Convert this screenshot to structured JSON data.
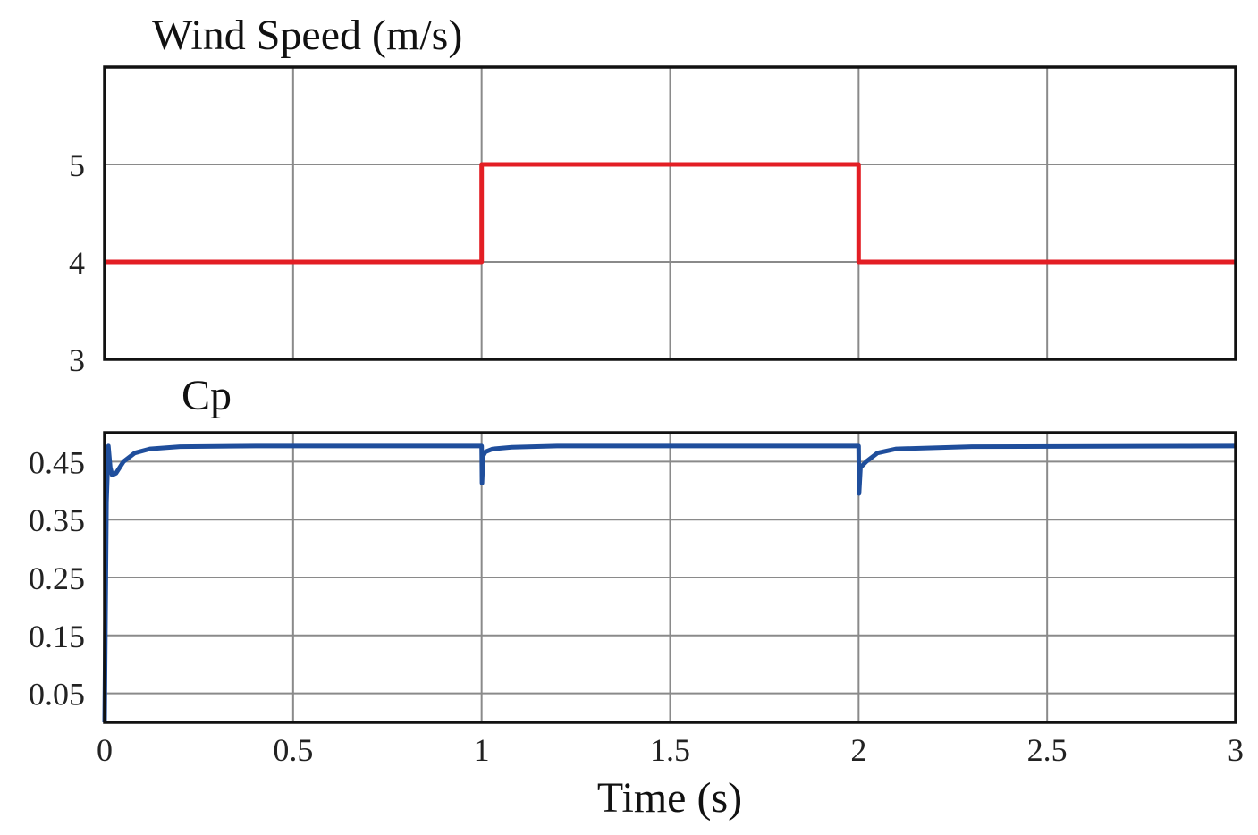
{
  "chart_data": [
    {
      "type": "line",
      "title": "Wind Speed (m/s)",
      "xlabel": "",
      "ylabel": "",
      "xlim": [
        0,
        3
      ],
      "ylim": [
        3,
        6
      ],
      "x_ticks": [
        0,
        0.5,
        1,
        1.5,
        2,
        2.5,
        3
      ],
      "y_ticks": [
        3,
        4,
        5
      ],
      "y_tick_labels": [
        "3",
        "4",
        "5"
      ],
      "grid": true,
      "series": [
        {
          "color": "#e31e24",
          "x": [
            0,
            1,
            1,
            2,
            2,
            3
          ],
          "y": [
            4,
            4,
            5,
            5,
            4,
            4
          ]
        }
      ]
    },
    {
      "type": "line",
      "title": "Cp",
      "xlabel": "Time (s)",
      "ylabel": "",
      "xlim": [
        0,
        3
      ],
      "ylim": [
        0,
        0.5
      ],
      "x_ticks": [
        0,
        0.5,
        1,
        1.5,
        2,
        2.5,
        3
      ],
      "x_tick_labels": [
        "0",
        "0.5",
        "1",
        "1.5",
        "2",
        "2.5",
        "3"
      ],
      "y_ticks": [
        0.05,
        0.15,
        0.25,
        0.35,
        0.45
      ],
      "y_tick_labels": [
        "0.05",
        "0.15",
        "0.25",
        "0.35",
        "0.45"
      ],
      "grid": true,
      "series": [
        {
          "color": "#1f4e9c",
          "x": [
            0,
            0.005,
            0.01,
            0.015,
            0.02,
            0.03,
            0.05,
            0.08,
            0.12,
            0.2,
            0.4,
            1.0,
            1.001,
            1.004,
            1.01,
            1.03,
            1.08,
            1.2,
            2.0,
            2.001,
            2.005,
            2.02,
            2.05,
            2.1,
            2.3,
            3.0
          ],
          "y": [
            0.0,
            0.38,
            0.477,
            0.44,
            0.427,
            0.43,
            0.45,
            0.465,
            0.472,
            0.476,
            0.477,
            0.477,
            0.413,
            0.46,
            0.467,
            0.472,
            0.475,
            0.477,
            0.477,
            0.395,
            0.44,
            0.45,
            0.465,
            0.472,
            0.476,
            0.477
          ]
        }
      ]
    }
  ]
}
